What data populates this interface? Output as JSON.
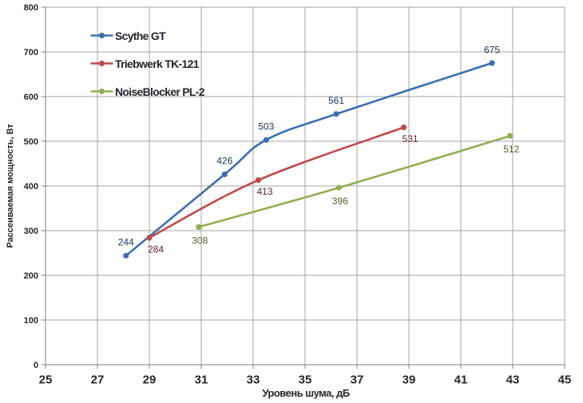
{
  "chart_data": {
    "type": "line",
    "title": "",
    "xlabel": "Уровень шума, дБ",
    "ylabel": "Рассеиваемая мощность, Вт",
    "xlim": [
      25,
      45
    ],
    "ylim": [
      0,
      800
    ],
    "x_ticks": [
      25,
      27,
      29,
      31,
      33,
      35,
      37,
      39,
      41,
      43,
      45
    ],
    "y_ticks": [
      0,
      100,
      200,
      300,
      400,
      500,
      600,
      700,
      800
    ],
    "grid": true,
    "smooth_lines": true,
    "legend_position": "top-left-inside",
    "series": [
      {
        "name": "Scythe GT",
        "color": "#3E6FB0",
        "label_color": "#1F3864",
        "label_position": "above",
        "label_offset": [
          0,
          -17
        ],
        "points": [
          {
            "x": 28.1,
            "y": 244
          },
          {
            "x": 31.9,
            "y": 426
          },
          {
            "x": 33.5,
            "y": 503
          },
          {
            "x": 36.2,
            "y": 561
          },
          {
            "x": 42.2,
            "y": 675
          }
        ],
        "labels": [
          "244",
          "426",
          "503",
          "561",
          "675"
        ]
      },
      {
        "name": "Triebwerk TK-121",
        "color": "#BE4B48",
        "label_color": "#632423",
        "label_position": "below",
        "label_offset": [
          8,
          14
        ],
        "points": [
          {
            "x": 29.0,
            "y": 284
          },
          {
            "x": 33.2,
            "y": 413
          },
          {
            "x": 38.8,
            "y": 531
          }
        ],
        "labels": [
          "284",
          "413",
          "531"
        ]
      },
      {
        "name": "NoiseBlocker PL-2",
        "color": "#91AF53",
        "label_color": "#4F6228",
        "label_position": "below",
        "label_offset": [
          1.5,
          16.5
        ],
        "points": [
          {
            "x": 30.9,
            "y": 308
          },
          {
            "x": 36.3,
            "y": 396
          },
          {
            "x": 42.9,
            "y": 512
          }
        ],
        "labels": [
          "308",
          "396",
          "512"
        ]
      }
    ]
  },
  "styles": {
    "background": "#ffffff",
    "gridline_color": "#A6A6A6",
    "axis_line_color": "#7F7F7F",
    "tick_label_color": "#262626",
    "legend_text_color": "#24262E"
  }
}
